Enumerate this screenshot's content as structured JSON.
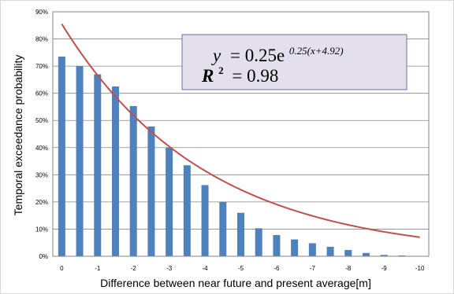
{
  "chart_data": {
    "type": "bar",
    "xlabel": "Difference between near future and present average[m]",
    "ylabel": "Temporal exceedance probability",
    "x_ticks": [
      "0",
      "-1",
      "-2",
      "-3",
      "-4",
      "-5",
      "-6",
      "-7",
      "-8",
      "-9",
      "-10"
    ],
    "x_range": [
      0.25,
      -10.25
    ],
    "y_ticks": [
      "0%",
      "10%",
      "20%",
      "30%",
      "40%",
      "50%",
      "60%",
      "70%",
      "80%",
      "90%"
    ],
    "ylim": [
      0,
      90
    ],
    "grid": "horizontal",
    "bar_color": "#4f81bd",
    "curve_color": "#c0504d",
    "series": [
      {
        "type": "bar",
        "x": [
          0,
          -0.5,
          -1,
          -1.5,
          -2,
          -2.5,
          -3,
          -3.5,
          -4,
          -4.5,
          -5,
          -5.5,
          -6,
          -6.5,
          -7,
          -7.5,
          -8,
          -8.5,
          -9,
          -9.5,
          -10
        ],
        "values": [
          73.5,
          70,
          67,
          62.5,
          55.3,
          47.8,
          40,
          33.5,
          26.2,
          20,
          16,
          10.3,
          7.8,
          6.2,
          4.8,
          3.5,
          2.3,
          1.2,
          0.5,
          0.3,
          0.1
        ]
      },
      {
        "type": "line",
        "function": "y = 0.25e^(0.25(x+4.92))",
        "x_start": 0,
        "x_end": -10
      }
    ],
    "annotation": {
      "equation_lhs": "y",
      "equation_rhs_coef": "= 0.25e",
      "equation_exponent": "0.25(x+4.92)",
      "r2_lhs": "R",
      "r2_sup": "2",
      "r2_rhs": "= 0.98",
      "fill": "#e4dfec",
      "border": "#8064a2"
    }
  }
}
